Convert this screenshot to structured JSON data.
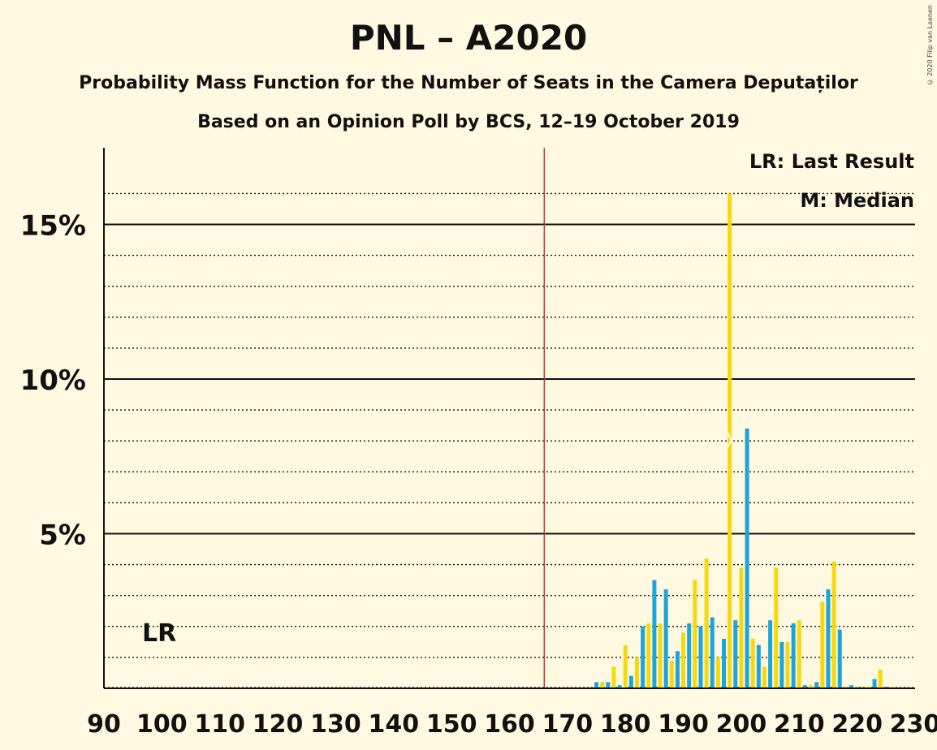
{
  "title": "PNL – A2020",
  "subtitle1": "Probability Mass Function for the Number of Seats in the Camera Deputaților",
  "subtitle2": "Based on an Opinion Poll by BCS, 12–19 October 2019",
  "copyright": "© 2020 Filip van Laenen",
  "legend": {
    "last_result": "LR: Last Result",
    "median": "M: Median"
  },
  "colors": {
    "background": "#fff9e1",
    "blue": "#1aa5db",
    "yellow": "#f5d90e",
    "last_result_line": "#c0392b"
  },
  "chart_data": {
    "type": "bar",
    "x_range": [
      90,
      230
    ],
    "x_ticks": [
      90,
      100,
      110,
      120,
      130,
      140,
      150,
      160,
      170,
      180,
      190,
      200,
      210,
      220,
      230
    ],
    "y_range": [
      0,
      17.5
    ],
    "y_ticks": [
      {
        "value": 5,
        "label": "5%"
      },
      {
        "value": 10,
        "label": "10%"
      },
      {
        "value": 15,
        "label": "15%"
      }
    ],
    "minor_gridlines": [
      1,
      2,
      3,
      4,
      6,
      7,
      8,
      9,
      11,
      12,
      13,
      14,
      16
    ],
    "last_result": {
      "seat": 166,
      "label": "LR"
    },
    "median": {
      "seat": 198,
      "label": "M"
    },
    "series": [
      {
        "color": "blue",
        "points": [
          [
            175,
            0.2
          ],
          [
            177,
            0.2
          ],
          [
            179,
            0.1
          ],
          [
            181,
            0.4
          ],
          [
            183,
            2.0
          ],
          [
            185,
            3.5
          ],
          [
            187,
            3.2
          ],
          [
            189,
            1.2
          ],
          [
            191,
            2.1
          ],
          [
            193,
            2.0
          ],
          [
            195,
            2.3
          ],
          [
            197,
            1.6
          ],
          [
            199,
            2.2
          ],
          [
            201,
            8.4
          ],
          [
            203,
            1.4
          ],
          [
            205,
            2.2
          ],
          [
            207,
            1.5
          ],
          [
            209,
            2.1
          ],
          [
            211,
            0.1
          ],
          [
            213,
            0.2
          ],
          [
            215,
            3.2
          ],
          [
            217,
            1.9
          ],
          [
            219,
            0.1
          ],
          [
            221,
            0.03
          ],
          [
            223,
            0.3
          ],
          [
            225,
            0.05
          ],
          [
            227,
            0.02
          ]
        ]
      },
      {
        "color": "yellow",
        "points": [
          [
            176,
            0.2
          ],
          [
            178,
            0.7
          ],
          [
            180,
            1.4
          ],
          [
            182,
            1.0
          ],
          [
            184,
            2.1
          ],
          [
            186,
            2.1
          ],
          [
            188,
            0.9
          ],
          [
            190,
            1.8
          ],
          [
            192,
            3.5
          ],
          [
            194,
            4.2
          ],
          [
            196,
            1.0
          ],
          [
            198,
            16.0
          ],
          [
            200,
            3.9
          ],
          [
            202,
            1.6
          ],
          [
            204,
            0.7
          ],
          [
            206,
            3.9
          ],
          [
            208,
            1.5
          ],
          [
            210,
            2.2
          ],
          [
            212,
            0.1
          ],
          [
            214,
            2.8
          ],
          [
            216,
            4.1
          ],
          [
            218,
            0.05
          ],
          [
            220,
            0.05
          ],
          [
            222,
            0.05
          ],
          [
            224,
            0.6
          ],
          [
            226,
            0.05
          ],
          [
            228,
            0.02
          ]
        ]
      }
    ],
    "x_tick_labels": [
      "90",
      "100",
      "110",
      "120",
      "130",
      "140",
      "150",
      "160",
      "170",
      "180",
      "190",
      "200",
      "210",
      "220",
      "230"
    ]
  }
}
